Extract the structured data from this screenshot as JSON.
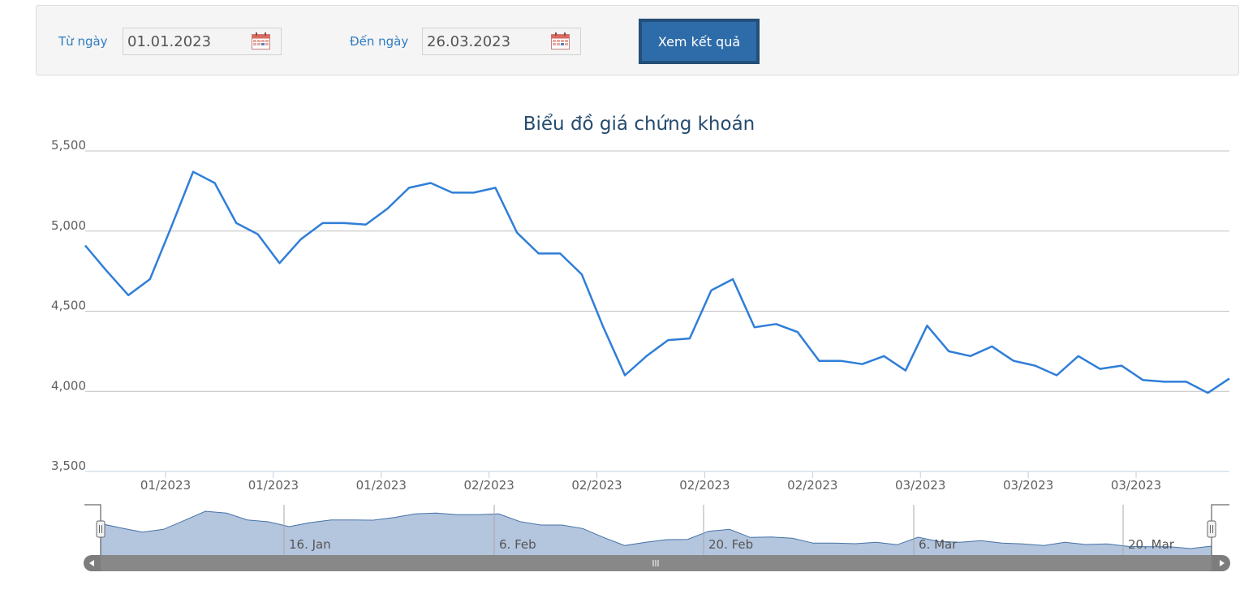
{
  "filter": {
    "from_label": "Từ ngày",
    "from_value": "01.01.2023",
    "to_label": "Đến ngày",
    "to_value": "26.03.2023",
    "submit_label": "Xem kết quả"
  },
  "chart_data": {
    "type": "line",
    "title": "Biểu đồ giá chứng khoán",
    "xlabel": "",
    "ylabel": "",
    "ylim": [
      3500,
      5500
    ],
    "y_ticks": [
      3500,
      4000,
      4500,
      5000,
      5500
    ],
    "y_tick_labels": [
      "3,500",
      "4,000",
      "4,500",
      "5,000",
      "5,500"
    ],
    "x_tick_labels": [
      "01/2023",
      "01/2023",
      "01/2023",
      "02/2023",
      "02/2023",
      "02/2023",
      "02/2023",
      "03/2023",
      "03/2023",
      "03/2023"
    ],
    "grid": true,
    "legend": "none",
    "series_color": "#2f7ed8",
    "series": [
      {
        "values": [
          4910,
          4750,
          4600,
          4700,
          5030,
          5370,
          5300,
          5050,
          4980,
          4800,
          4950,
          5050,
          5050,
          5040,
          5140,
          5270,
          5300,
          5240,
          5240,
          5270,
          4990,
          4860,
          4860,
          4730,
          4400,
          4100,
          4220,
          4320,
          4330,
          4630,
          4700,
          4400,
          4420,
          4370,
          4190,
          4190,
          4170,
          4220,
          4130,
          4410,
          4250,
          4220,
          4280,
          4190,
          4160,
          4100,
          4220,
          4140,
          4160,
          4070,
          4060,
          4060,
          3990,
          4080
        ]
      }
    ],
    "navigator": {
      "labels": [
        "16. Jan",
        "6. Feb",
        "20. Feb",
        "6. Mar",
        "20. Mar"
      ],
      "fill_color": "#b4c5de",
      "line_color": "#4572a7"
    }
  }
}
